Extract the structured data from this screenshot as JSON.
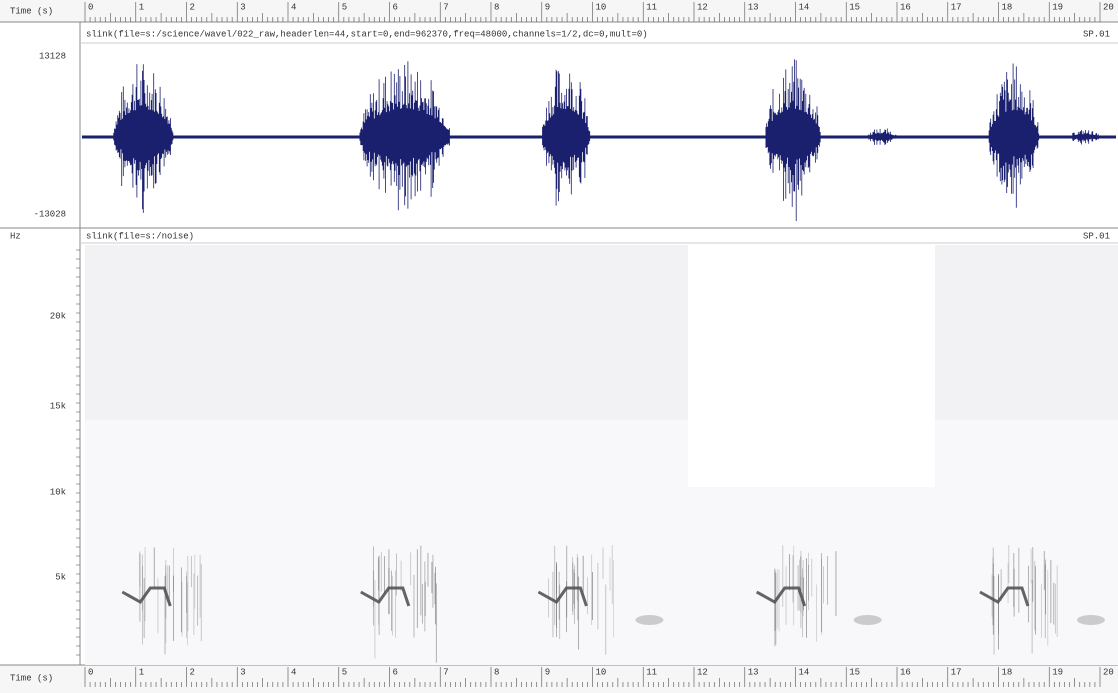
{
  "top_axis": {
    "label": "Time (s)",
    "ticks": [
      "0",
      "1",
      "2",
      "3",
      "4",
      "5",
      "6",
      "7",
      "8",
      "9",
      "10",
      "11",
      "12",
      "13",
      "14",
      "15",
      "16",
      "17",
      "18",
      "19",
      "20"
    ]
  },
  "waveform_panel": {
    "header": "slink(file=s:/science/wavel/022_raw,headerlen=44,start=0,end=962370,freq=48000,channels=1/2,dc=0,mult=0)",
    "corner": "SP.01",
    "y_labels": [
      "13128",
      "-13028"
    ]
  },
  "spectrogram_panel": {
    "unit": "Hz",
    "header": "slink(file=s:/noise)",
    "corner": "SP.01",
    "y_labels": [
      "20k",
      "15k",
      "10k",
      "5k"
    ]
  },
  "bottom_axis": {
    "label": "Time (s)",
    "ticks": [
      "0",
      "1",
      "2",
      "3",
      "4",
      "5",
      "6",
      "7",
      "8",
      "9",
      "10",
      "11",
      "12",
      "13",
      "14",
      "15",
      "16",
      "17",
      "18",
      "19",
      "20"
    ]
  }
}
